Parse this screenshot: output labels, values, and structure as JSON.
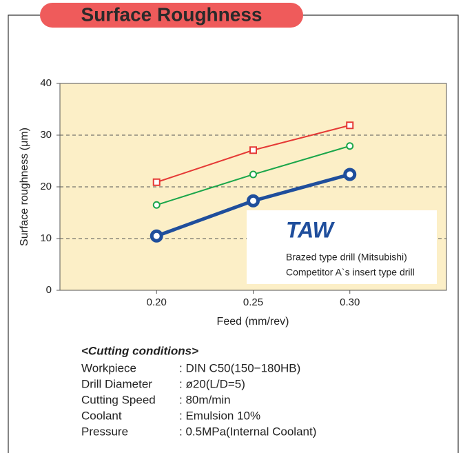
{
  "chart_data": {
    "type": "line",
    "title": "Surface Roughness",
    "x_label": "Feed (mm/rev)",
    "y_label": "Surface roughness (μm)",
    "x": [
      0.2,
      0.25,
      0.3
    ],
    "xlim": [
      0.15,
      0.35
    ],
    "xticks": [
      {
        "value": 0.2,
        "label": "0.20"
      },
      0.25,
      {
        "value": 0.3,
        "label": "0.30"
      }
    ],
    "ylim": [
      0,
      40
    ],
    "yticks": [
      0,
      10,
      20,
      30,
      40
    ],
    "grid": true,
    "legend": "lower right",
    "series": [
      {
        "name": "TAW",
        "color": "#1f4e9c",
        "marker": "circle",
        "width": 5,
        "values": [
          10.5,
          17.3,
          22.4
        ]
      },
      {
        "name": "Brazed type drill (Mitsubishi)",
        "color": "#1aa64a",
        "marker": "circle",
        "width": 2,
        "values": [
          16.5,
          22.4,
          27.9
        ]
      },
      {
        "name": "Competitor A`s insert type drill",
        "color": "#e53935",
        "marker": "square",
        "width": 2,
        "values": [
          20.9,
          27.1,
          31.9
        ]
      }
    ]
  },
  "conditions": {
    "title": "<Cutting conditions>",
    "rows": [
      [
        "Workpiece",
        ": DIN C50(150−180HB)"
      ],
      [
        "Drill Diameter",
        ": ø20(L/D=5)"
      ],
      [
        "Cutting Speed",
        ": 80m/min"
      ],
      [
        "Coolant",
        ": Emulsion 10%"
      ],
      [
        "Pressure",
        ": 0.5MPa(Internal Coolant)"
      ]
    ]
  }
}
